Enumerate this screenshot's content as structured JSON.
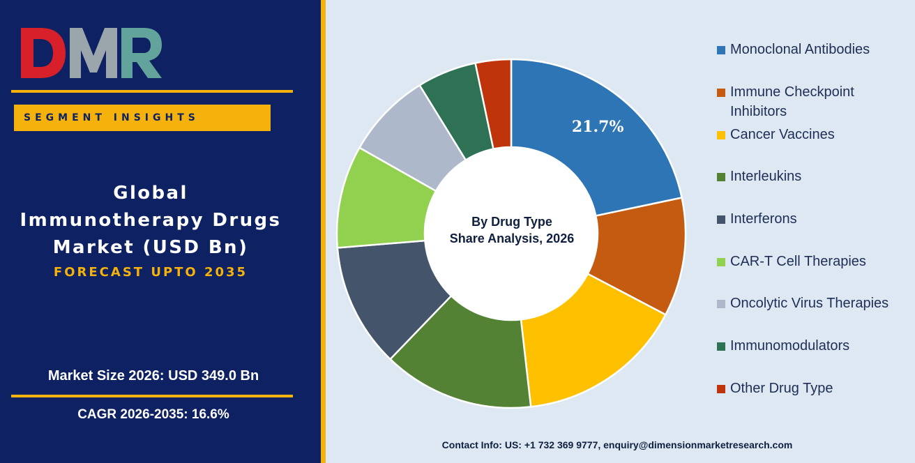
{
  "logo": {
    "text": "DMR",
    "colors": {
      "D": "#d8202a",
      "M": "#9aa5ac",
      "R": "#62a49b"
    }
  },
  "tag": "SEGMENT INSIGHTS",
  "headline": {
    "line1": "Global",
    "line2": "Immunotherapy Drugs",
    "line3": "Market (USD Bn)"
  },
  "forecast": "FORECAST UPTO 2035",
  "market_size": "Market Size 2026: USD 349.0 Bn",
  "cagr": "CAGR 2026-2035: 16.6%",
  "contact": "Contact Info: US: +1 732 369 9777, enquiry@dimensionmarketresearch.com",
  "colors": {
    "panel": "#0e2163",
    "accent": "#f5b20c",
    "background": "#dde8f3"
  },
  "chart_data": {
    "type": "pie",
    "style": "donut",
    "center_title": [
      "By Drug Type",
      "Share Analysis, 2026"
    ],
    "legend_position": "right",
    "categories": [
      "Monoclonal Antibodies",
      "Immune Checkpoint Inhibitors",
      "Cancer Vaccines",
      "Interleukins",
      "Interferons",
      "CAR-T Cell Therapies",
      "Oncolytic Virus Therapies",
      "Immunomodulators",
      "Other Drug Type"
    ],
    "legend_labels": [
      [
        "Monoclonal Antibodies"
      ],
      [
        "Immune Checkpoint",
        "Inhibitors"
      ],
      [
        "Cancer Vaccines"
      ],
      [
        "Interleukins"
      ],
      [
        "Interferons"
      ],
      [
        "CAR-T Cell Therapies"
      ],
      [
        "Oncolytic Virus Therapies"
      ],
      [
        "Immunomodulators"
      ],
      [
        "Other Drug Type"
      ]
    ],
    "values": [
      21.7,
      11.0,
      15.5,
      14.0,
      11.5,
      9.5,
      8.0,
      5.5,
      3.3
    ],
    "data_labels": [
      "21.7%",
      "",
      "",
      "",
      "",
      "",
      "",
      "",
      ""
    ],
    "colors": [
      "#2e75b6",
      "#c55a11",
      "#ffc000",
      "#548235",
      "#44546a",
      "#92d050",
      "#adb9ca",
      "#2f7155",
      "#c0340c"
    ]
  }
}
